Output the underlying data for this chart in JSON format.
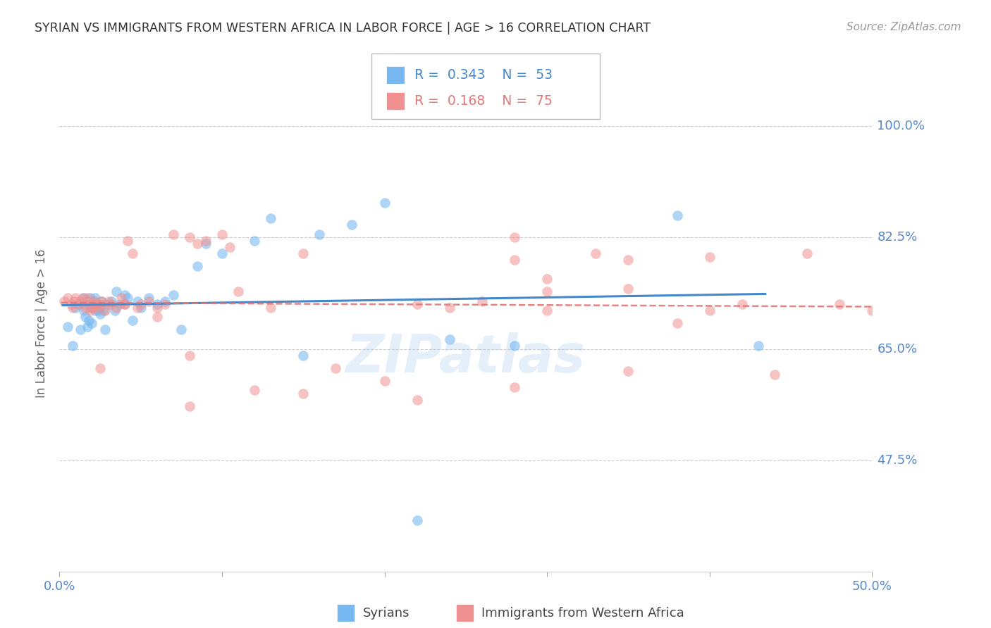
{
  "title": "SYRIAN VS IMMIGRANTS FROM WESTERN AFRICA IN LABOR FORCE | AGE > 16 CORRELATION CHART",
  "source": "Source: ZipAtlas.com",
  "ylabel": "In Labor Force | Age > 16",
  "ytick_labels": [
    "100.0%",
    "82.5%",
    "65.0%",
    "47.5%"
  ],
  "ytick_values": [
    1.0,
    0.825,
    0.65,
    0.475
  ],
  "xtick_labels": [
    "0.0%",
    "50.0%"
  ],
  "xtick_values": [
    0.0,
    0.5
  ],
  "xlim": [
    0.0,
    0.5
  ],
  "ylim": [
    0.3,
    1.08
  ],
  "legend_label1": "Syrians",
  "legend_label2": "Immigrants from Western Africa",
  "R1": "0.343",
  "N1": "53",
  "R2": "0.168",
  "N2": "75",
  "color_blue": "#78b8f0",
  "color_pink": "#f09090",
  "color_line_blue": "#4488cc",
  "color_line_pink": "#e07878",
  "watermark": "ZIPatlas",
  "title_color": "#333333",
  "tick_color": "#5588cc",
  "background_color": "#ffffff",
  "syrians_x": [
    0.005,
    0.008,
    0.01,
    0.012,
    0.013,
    0.015,
    0.015,
    0.016,
    0.017,
    0.018,
    0.018,
    0.019,
    0.02,
    0.02,
    0.021,
    0.022,
    0.022,
    0.023,
    0.024,
    0.025,
    0.025,
    0.026,
    0.027,
    0.028,
    0.03,
    0.032,
    0.034,
    0.035,
    0.037,
    0.04,
    0.042,
    0.045,
    0.048,
    0.05,
    0.055,
    0.06,
    0.065,
    0.07,
    0.075,
    0.085,
    0.09,
    0.1,
    0.12,
    0.13,
    0.15,
    0.18,
    0.2,
    0.22,
    0.24,
    0.28,
    0.38,
    0.43,
    0.16
  ],
  "syrians_y": [
    0.685,
    0.655,
    0.715,
    0.72,
    0.68,
    0.71,
    0.73,
    0.7,
    0.685,
    0.72,
    0.695,
    0.73,
    0.69,
    0.715,
    0.725,
    0.71,
    0.73,
    0.72,
    0.71,
    0.705,
    0.715,
    0.725,
    0.71,
    0.68,
    0.72,
    0.725,
    0.71,
    0.74,
    0.72,
    0.735,
    0.73,
    0.695,
    0.725,
    0.715,
    0.73,
    0.72,
    0.725,
    0.735,
    0.68,
    0.78,
    0.815,
    0.8,
    0.82,
    0.855,
    0.64,
    0.845,
    0.88,
    0.38,
    0.665,
    0.655,
    0.86,
    0.655,
    0.83
  ],
  "western_africa_x": [
    0.003,
    0.005,
    0.007,
    0.008,
    0.009,
    0.01,
    0.012,
    0.013,
    0.014,
    0.015,
    0.016,
    0.017,
    0.018,
    0.019,
    0.02,
    0.021,
    0.022,
    0.023,
    0.024,
    0.025,
    0.026,
    0.028,
    0.03,
    0.032,
    0.035,
    0.038,
    0.04,
    0.042,
    0.045,
    0.048,
    0.05,
    0.055,
    0.06,
    0.065,
    0.07,
    0.08,
    0.085,
    0.09,
    0.1,
    0.105,
    0.11,
    0.13,
    0.15,
    0.17,
    0.2,
    0.22,
    0.24,
    0.26,
    0.28,
    0.3,
    0.33,
    0.35,
    0.38,
    0.4,
    0.42,
    0.44,
    0.46,
    0.48,
    0.5,
    0.28,
    0.3,
    0.15,
    0.12,
    0.08,
    0.06,
    0.04,
    0.02,
    0.025,
    0.3,
    0.35,
    0.08,
    0.28,
    0.35,
    0.4,
    0.22
  ],
  "western_africa_y": [
    0.725,
    0.73,
    0.72,
    0.715,
    0.725,
    0.73,
    0.72,
    0.725,
    0.73,
    0.72,
    0.715,
    0.73,
    0.725,
    0.71,
    0.72,
    0.715,
    0.725,
    0.72,
    0.715,
    0.72,
    0.725,
    0.71,
    0.725,
    0.72,
    0.715,
    0.73,
    0.72,
    0.82,
    0.8,
    0.715,
    0.72,
    0.725,
    0.715,
    0.72,
    0.83,
    0.825,
    0.815,
    0.82,
    0.83,
    0.81,
    0.74,
    0.715,
    0.8,
    0.62,
    0.6,
    0.72,
    0.715,
    0.725,
    0.59,
    0.71,
    0.8,
    0.615,
    0.69,
    0.795,
    0.72,
    0.61,
    0.8,
    0.72,
    0.71,
    0.825,
    0.74,
    0.58,
    0.585,
    0.64,
    0.7,
    0.72,
    0.715,
    0.62,
    0.76,
    0.79,
    0.56,
    0.79,
    0.745,
    0.71,
    0.57
  ]
}
